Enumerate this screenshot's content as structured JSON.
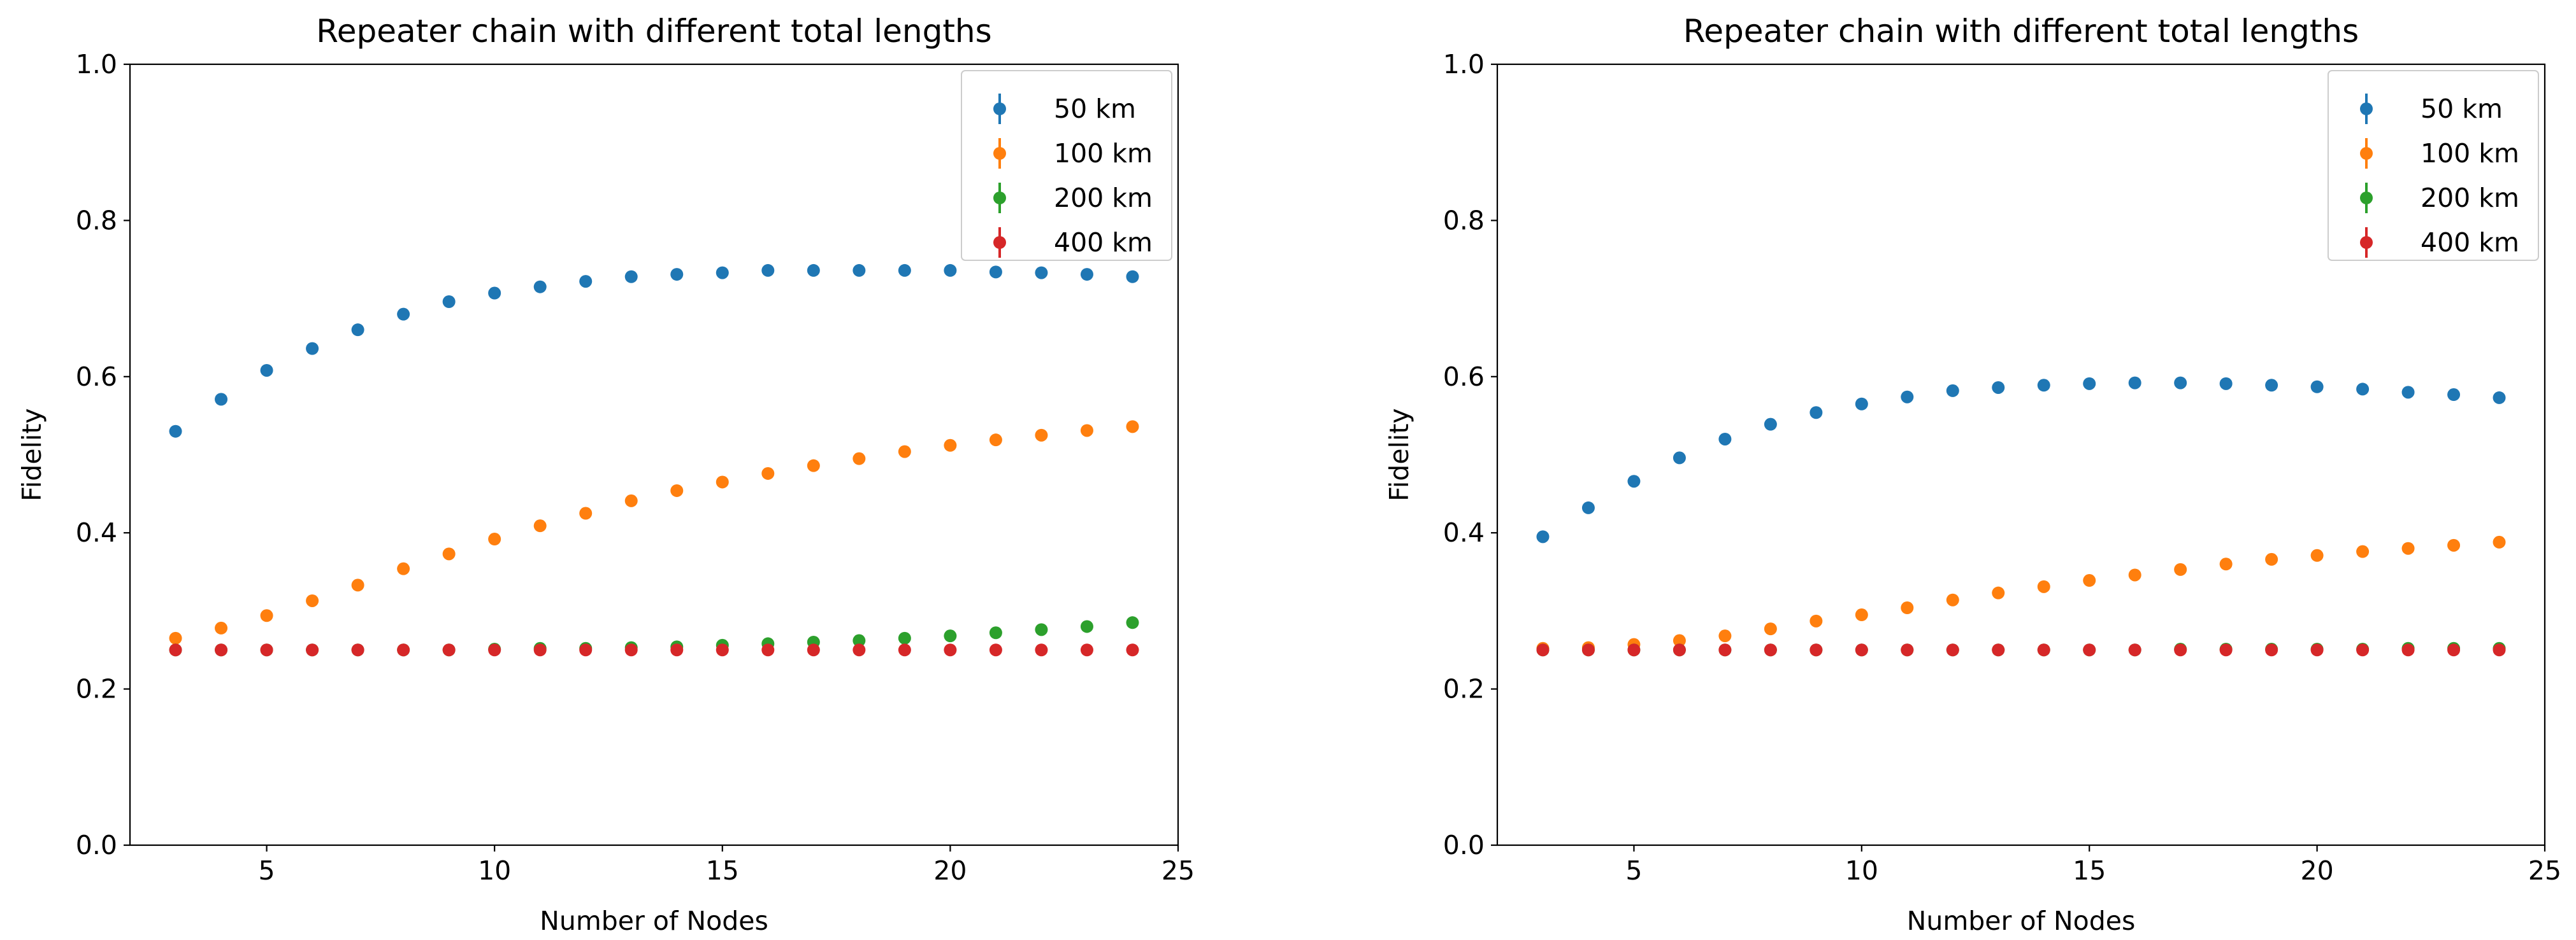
{
  "chart_data": [
    {
      "type": "scatter",
      "title": "Repeater chain with different total lengths",
      "xlabel": "Number of Nodes",
      "ylabel": "Fidelity",
      "xlim": [
        2.0,
        25.0
      ],
      "ylim": [
        0.0,
        1.0
      ],
      "xticks": [
        "5",
        "10",
        "15",
        "20",
        "25"
      ],
      "yticks": [
        "0.0",
        "0.2",
        "0.4",
        "0.6",
        "0.8",
        "1.0"
      ],
      "legend_position": "top-right",
      "x": [
        3,
        4,
        5,
        6,
        7,
        8,
        9,
        10,
        11,
        12,
        13,
        14,
        15,
        16,
        17,
        18,
        19,
        20,
        21,
        22,
        23,
        24
      ],
      "series": [
        {
          "name": "50 km",
          "color": "#1f77b4",
          "values": [
            0.53,
            0.571,
            0.608,
            0.636,
            0.66,
            0.68,
            0.696,
            0.707,
            0.715,
            0.722,
            0.728,
            0.731,
            0.733,
            0.736,
            0.736,
            0.736,
            0.736,
            0.736,
            0.734,
            0.733,
            0.731,
            0.728
          ]
        },
        {
          "name": "100 km",
          "color": "#ff7f0e",
          "values": [
            0.265,
            0.278,
            0.294,
            0.313,
            0.333,
            0.354,
            0.373,
            0.392,
            0.409,
            0.425,
            0.441,
            0.454,
            0.465,
            0.476,
            0.486,
            0.495,
            0.504,
            0.512,
            0.519,
            0.525,
            0.531,
            0.536
          ]
        },
        {
          "name": "200 km",
          "color": "#2ca02c",
          "values": [
            0.25,
            0.25,
            0.25,
            0.25,
            0.25,
            0.25,
            0.25,
            0.251,
            0.252,
            0.252,
            0.253,
            0.254,
            0.256,
            0.258,
            0.26,
            0.262,
            0.265,
            0.268,
            0.272,
            0.276,
            0.28,
            0.285
          ]
        },
        {
          "name": "400 km",
          "color": "#d62728",
          "values": [
            0.25,
            0.25,
            0.25,
            0.25,
            0.25,
            0.25,
            0.25,
            0.25,
            0.25,
            0.25,
            0.25,
            0.25,
            0.25,
            0.25,
            0.25,
            0.25,
            0.25,
            0.25,
            0.25,
            0.25,
            0.25,
            0.25
          ]
        }
      ]
    },
    {
      "type": "scatter",
      "title": "Repeater chain with different total lengths",
      "xlabel": "Number of Nodes",
      "ylabel": "Fidelity",
      "xlim": [
        2.0,
        25.0
      ],
      "ylim": [
        0.0,
        1.0
      ],
      "xticks": [
        "5",
        "10",
        "15",
        "20",
        "25"
      ],
      "yticks": [
        "0.0",
        "0.2",
        "0.4",
        "0.6",
        "0.8",
        "1.0"
      ],
      "legend_position": "top-right",
      "x": [
        3,
        4,
        5,
        6,
        7,
        8,
        9,
        10,
        11,
        12,
        13,
        14,
        15,
        16,
        17,
        18,
        19,
        20,
        21,
        22,
        23,
        24
      ],
      "series": [
        {
          "name": "50 km",
          "color": "#1f77b4",
          "values": [
            0.395,
            0.432,
            0.466,
            0.496,
            0.52,
            0.539,
            0.554,
            0.565,
            0.574,
            0.582,
            0.586,
            0.589,
            0.591,
            0.592,
            0.592,
            0.591,
            0.589,
            0.587,
            0.584,
            0.58,
            0.577,
            0.573
          ]
        },
        {
          "name": "100 km",
          "color": "#ff7f0e",
          "values": [
            0.252,
            0.253,
            0.257,
            0.262,
            0.268,
            0.277,
            0.287,
            0.295,
            0.304,
            0.314,
            0.323,
            0.331,
            0.339,
            0.346,
            0.353,
            0.36,
            0.366,
            0.371,
            0.376,
            0.38,
            0.384,
            0.388
          ]
        },
        {
          "name": "200 km",
          "color": "#2ca02c",
          "values": [
            0.25,
            0.25,
            0.25,
            0.25,
            0.25,
            0.25,
            0.25,
            0.25,
            0.25,
            0.25,
            0.25,
            0.25,
            0.25,
            0.25,
            0.251,
            0.251,
            0.251,
            0.251,
            0.251,
            0.252,
            0.252,
            0.252
          ]
        },
        {
          "name": "400 km",
          "color": "#d62728",
          "values": [
            0.25,
            0.25,
            0.25,
            0.25,
            0.25,
            0.25,
            0.25,
            0.25,
            0.25,
            0.25,
            0.25,
            0.25,
            0.25,
            0.25,
            0.25,
            0.25,
            0.25,
            0.25,
            0.25,
            0.25,
            0.25,
            0.25
          ]
        }
      ]
    }
  ]
}
